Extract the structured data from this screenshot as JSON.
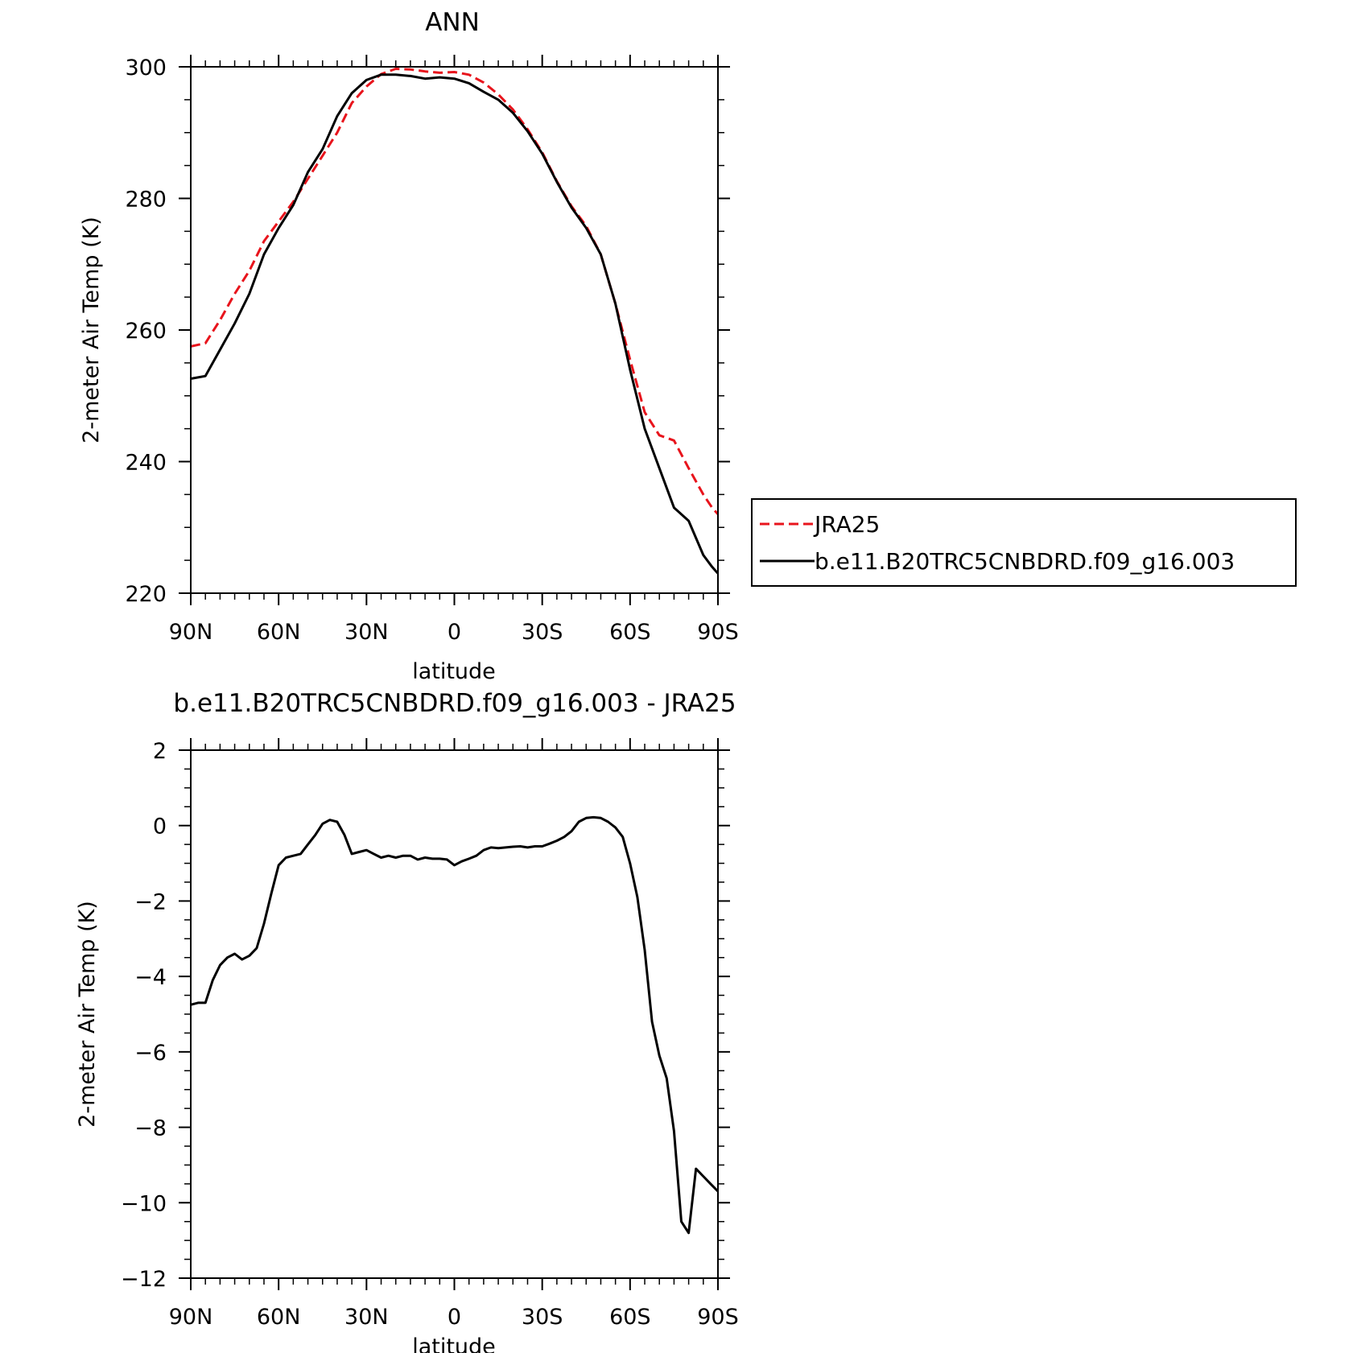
{
  "colors": {
    "model": "#000000",
    "obs": "#e8141c",
    "frame": "#000000"
  },
  "chart_data": [
    {
      "type": "line",
      "title": "ANN",
      "xlabel": "latitude",
      "ylabel": "2-meter Air Temp (K)",
      "xlim": [
        90,
        -90
      ],
      "ylim": [
        220,
        300
      ],
      "xticks": [
        90,
        60,
        30,
        0,
        -30,
        -60,
        -90
      ],
      "xtick_labels": [
        "90N",
        "60N",
        "30N",
        "0",
        "30S",
        "60S",
        "90S"
      ],
      "yticks": [
        220,
        240,
        260,
        280,
        300
      ],
      "ytick_labels": [
        "220",
        "240",
        "260",
        "280",
        "300"
      ],
      "legend_position": "right",
      "series": [
        {
          "name": "JRA25",
          "style": "dashed",
          "color": "#e8141c",
          "x": [
            90,
            85,
            80,
            75,
            70,
            65,
            60,
            55,
            50,
            45,
            40,
            35,
            30,
            25,
            20,
            15,
            10,
            5,
            0,
            -5,
            -10,
            -15,
            -20,
            -25,
            -30,
            -35,
            -40,
            -45,
            -50,
            -55,
            -60,
            -65,
            -70,
            -75,
            -80,
            -85,
            -88,
            -90
          ],
          "y": [
            257.5,
            258.0,
            261.5,
            265.5,
            269.0,
            273.5,
            276.5,
            279.5,
            283.0,
            286.5,
            290.0,
            294.5,
            297.0,
            298.9,
            299.7,
            299.6,
            299.3,
            299.1,
            299.2,
            298.8,
            297.6,
            295.8,
            293.5,
            290.5,
            287.0,
            282.6,
            278.8,
            275.8,
            271.5,
            264.0,
            255.5,
            247.5,
            244.0,
            243.2,
            239.0,
            235.0,
            233.0,
            232.0
          ]
        },
        {
          "name": "b.e11.B20TRC5CNBDRD.f09_g16.003",
          "style": "solid",
          "color": "#000000",
          "x": [
            90,
            85,
            80,
            75,
            70,
            65,
            60,
            55,
            50,
            45,
            40,
            35,
            30,
            25,
            20,
            15,
            10,
            5,
            0,
            -5,
            -10,
            -15,
            -20,
            -25,
            -30,
            -35,
            -40,
            -45,
            -50,
            -55,
            -60,
            -65,
            -70,
            -75,
            -80,
            -85,
            -88,
            -90
          ],
          "y": [
            252.6,
            253.0,
            257.0,
            261.0,
            265.5,
            271.5,
            275.5,
            279.0,
            284.0,
            287.5,
            292.5,
            296.0,
            298.0,
            298.8,
            298.8,
            298.6,
            298.2,
            298.4,
            298.2,
            297.5,
            296.2,
            295.0,
            293.0,
            290.2,
            286.8,
            282.5,
            278.6,
            275.5,
            271.5,
            264.0,
            254.0,
            245.0,
            239.0,
            233.0,
            231.0,
            225.8,
            224.0,
            223.0
          ]
        }
      ]
    },
    {
      "type": "line",
      "title": "b.e11.B20TRC5CNBDRD.f09_g16.003 - JRA25",
      "xlabel": "latitude",
      "ylabel": "2-meter Air Temp (K)",
      "xlim": [
        90,
        -90
      ],
      "ylim": [
        -12,
        2
      ],
      "xticks": [
        90,
        60,
        30,
        0,
        -30,
        -60,
        -90
      ],
      "xtick_labels": [
        "90N",
        "60N",
        "30N",
        "0",
        "30S",
        "60S",
        "90S"
      ],
      "yticks": [
        -12,
        -10,
        -8,
        -6,
        -4,
        -2,
        0,
        2
      ],
      "ytick_labels": [
        "-12",
        "-10",
        "-8",
        "-6",
        "-4",
        "-2",
        "0",
        "2"
      ],
      "series": [
        {
          "style": "solid",
          "color": "#000000",
          "x": [
            90,
            87.5,
            85,
            82.5,
            80,
            77.5,
            75,
            72.5,
            70,
            67.5,
            65,
            62.5,
            60,
            57.5,
            55,
            52.5,
            50,
            47.5,
            45,
            42.5,
            40,
            37.5,
            35,
            32.5,
            30,
            27.5,
            25,
            22.5,
            20,
            17.5,
            15,
            12.5,
            10,
            7.5,
            5,
            2.5,
            0,
            -2.5,
            -5,
            -7.5,
            -10,
            -12.5,
            -15,
            -17.5,
            -20,
            -22.5,
            -25,
            -27.5,
            -30,
            -32.5,
            -35,
            -37.5,
            -40,
            -42.5,
            -45,
            -47.5,
            -50,
            -52.5,
            -55,
            -57.5,
            -60,
            -62.5,
            -65,
            -67.5,
            -70,
            -72.5,
            -75,
            -77.5,
            -80,
            -82.5,
            -85,
            -87.5,
            -90
          ],
          "y": [
            -4.75,
            -4.7,
            -4.7,
            -4.1,
            -3.7,
            -3.5,
            -3.4,
            -3.55,
            -3.45,
            -3.25,
            -2.6,
            -1.8,
            -1.05,
            -0.85,
            -0.8,
            -0.75,
            -0.5,
            -0.25,
            0.05,
            0.15,
            0.1,
            -0.25,
            -0.75,
            -0.7,
            -0.65,
            -0.75,
            -0.85,
            -0.8,
            -0.85,
            -0.8,
            -0.8,
            -0.9,
            -0.85,
            -0.88,
            -0.88,
            -0.9,
            -1.05,
            -0.95,
            -0.88,
            -0.8,
            -0.65,
            -0.58,
            -0.6,
            -0.58,
            -0.56,
            -0.55,
            -0.58,
            -0.55,
            -0.55,
            -0.48,
            -0.4,
            -0.3,
            -0.15,
            0.1,
            0.2,
            0.22,
            0.2,
            0.1,
            -0.05,
            -0.3,
            -1.0,
            -1.9,
            -3.3,
            -5.2,
            -6.1,
            -6.7,
            -8.1,
            -10.5,
            -10.8,
            -9.1,
            -9.3,
            -9.5,
            -9.7
          ]
        }
      ]
    }
  ]
}
